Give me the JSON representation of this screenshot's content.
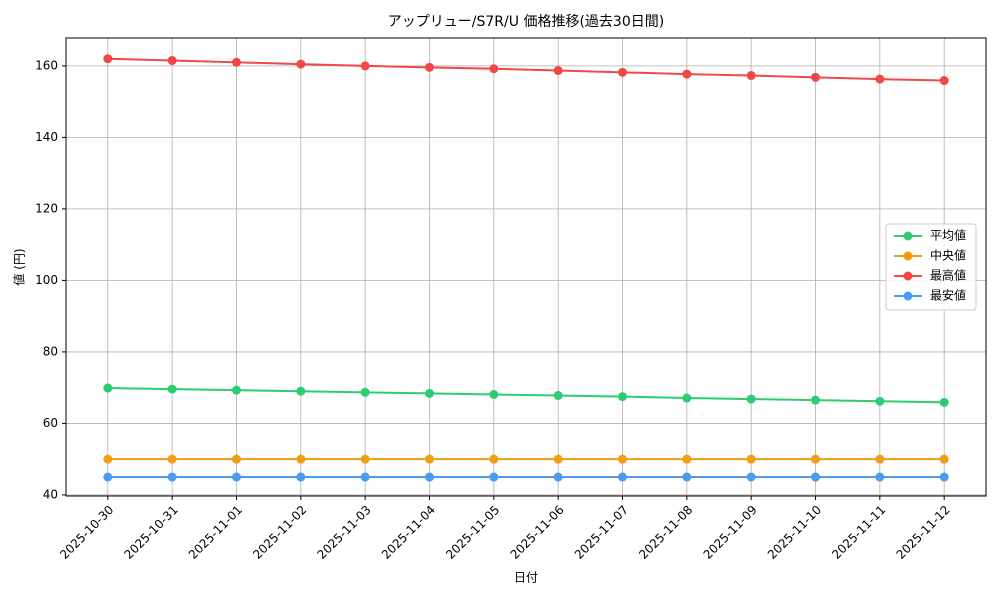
{
  "chart_data": {
    "type": "line",
    "title": "アップリュー/S7R/U 価格推移(過去30日間)",
    "x_label": "日付",
    "y_label": "値 (円)",
    "categories": [
      "2025-10-30",
      "2025-10-31",
      "2025-11-01",
      "2025-11-02",
      "2025-11-03",
      "2025-11-04",
      "2025-11-05",
      "2025-11-06",
      "2025-11-07",
      "2025-11-08",
      "2025-11-09",
      "2025-11-10",
      "2025-11-11",
      "2025-11-12"
    ],
    "series": [
      {
        "name": "平均値",
        "color": "#2ecc71",
        "values": [
          69.9,
          69.6,
          69.3,
          69.0,
          68.7,
          68.4,
          68.1,
          67.8,
          67.5,
          67.1,
          66.8,
          66.5,
          66.2,
          65.9
        ]
      },
      {
        "name": "中央値",
        "color": "#f39c12",
        "values": [
          50,
          50,
          50,
          50,
          50,
          50,
          50,
          50,
          50,
          50,
          50,
          50,
          50,
          50
        ]
      },
      {
        "name": "最高値",
        "color": "#f04848",
        "values": [
          162,
          161.5,
          161.0,
          160.5,
          160.0,
          159.6,
          159.2,
          158.7,
          158.2,
          157.7,
          157.3,
          156.8,
          156.3,
          155.9
        ]
      },
      {
        "name": "最安値",
        "color": "#4b9bef",
        "values": [
          45,
          45,
          45,
          45,
          45,
          45,
          45,
          45,
          45,
          45,
          45,
          45,
          45,
          45
        ]
      }
    ],
    "ylim": [
      39.7,
      167.8
    ],
    "yticks": [
      40,
      60,
      80,
      100,
      120,
      140,
      160
    ],
    "grid": true,
    "legend": "right"
  }
}
